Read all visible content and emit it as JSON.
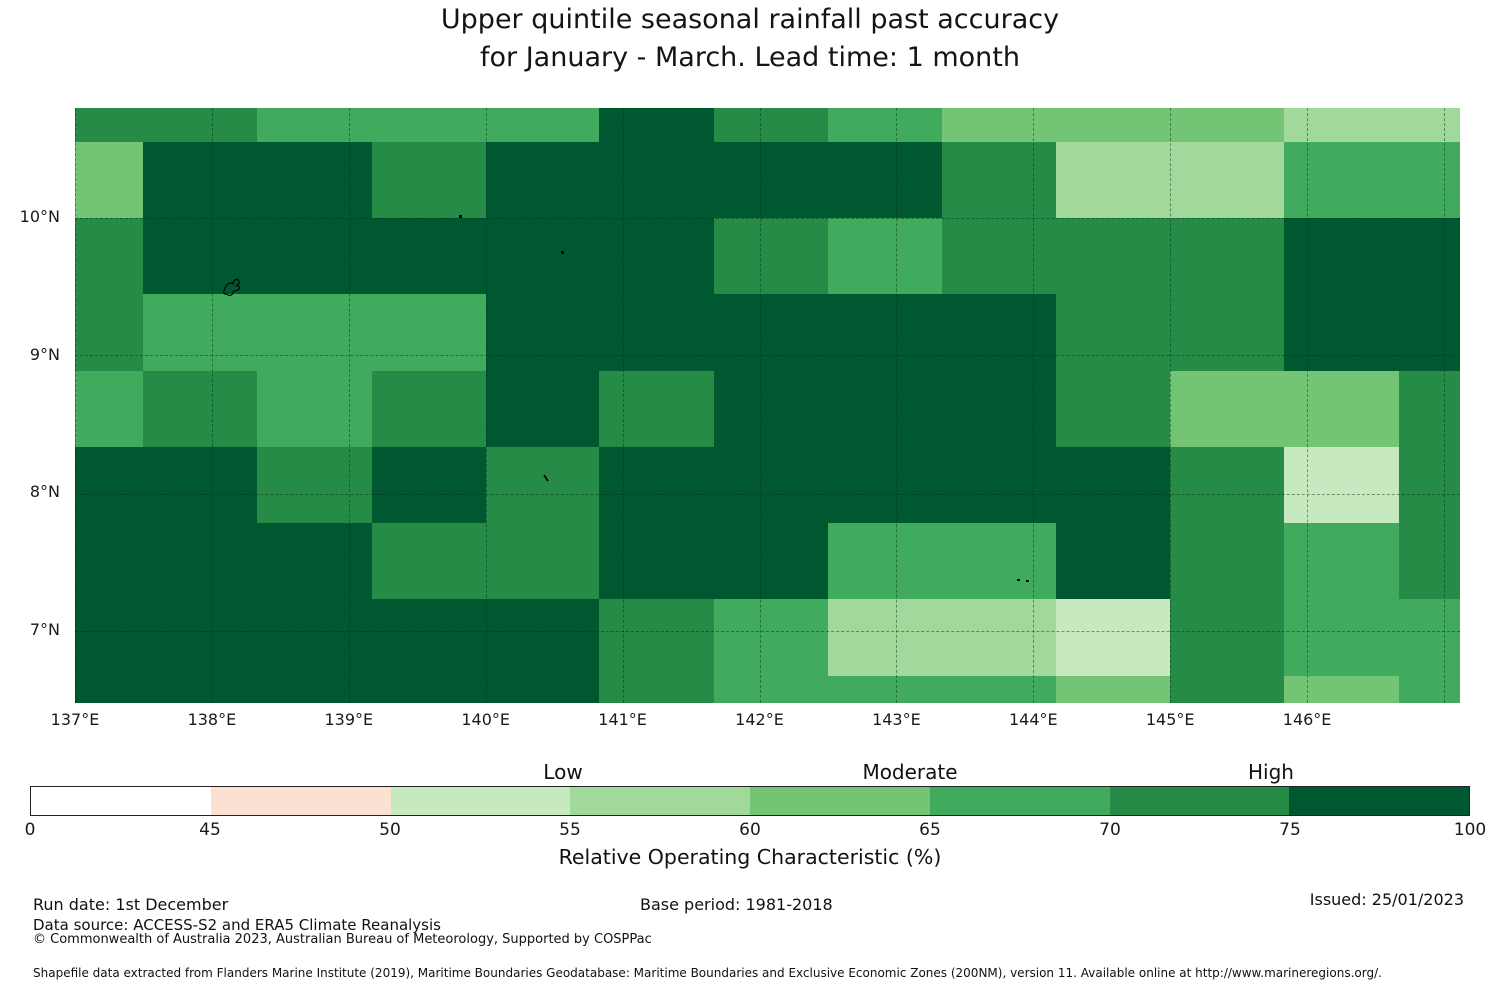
{
  "title": {
    "line1": "Upper quintile seasonal rainfall past accuracy",
    "line2": "for January - March. Lead time: 1 month"
  },
  "chart_data": {
    "type": "heatmap",
    "x_tick_labels": [
      "137°E",
      "138°E",
      "139°E",
      "140°E",
      "141°E",
      "142°E",
      "143°E",
      "144°E",
      "145°E",
      "146°E"
    ],
    "y_tick_labels": [
      "10°N",
      "9°N",
      "8°N",
      "7°N"
    ],
    "palette": {
      "p0": "#ffffff",
      "p1": "#fbe1d2",
      "p2": "#c7e9c0",
      "p3": "#a1d99b",
      "p4": "#74c476",
      "p5": "#41ab5d",
      "p6": "#268b47",
      "p7": "#005830"
    },
    "grid_rows": [
      [
        6,
        6,
        5,
        5,
        5,
        7,
        6,
        5,
        4,
        4,
        4,
        3,
        3
      ],
      [
        4,
        7,
        7,
        6,
        7,
        7,
        7,
        7,
        6,
        3,
        3,
        5,
        5
      ],
      [
        6,
        7,
        7,
        7,
        7,
        7,
        6,
        5,
        6,
        6,
        6,
        7,
        7
      ],
      [
        6,
        5,
        5,
        5,
        7,
        7,
        7,
        7,
        7,
        6,
        6,
        7,
        7
      ],
      [
        5,
        6,
        5,
        6,
        7,
        6,
        7,
        7,
        7,
        6,
        4,
        4,
        6
      ],
      [
        7,
        7,
        6,
        7,
        6,
        7,
        7,
        7,
        7,
        7,
        6,
        2,
        6
      ],
      [
        7,
        7,
        7,
        6,
        6,
        7,
        7,
        5,
        5,
        7,
        6,
        5,
        6
      ],
      [
        7,
        7,
        7,
        7,
        7,
        6,
        5,
        3,
        3,
        2,
        6,
        5,
        5
      ],
      [
        7,
        7,
        7,
        7,
        7,
        6,
        5,
        5,
        5,
        4,
        6,
        4,
        5
      ]
    ],
    "colorbar": {
      "tick_values": [
        "0",
        "45",
        "50",
        "55",
        "60",
        "65",
        "70",
        "75",
        "100"
      ],
      "segment_palette_keys": [
        "p0",
        "p1",
        "p2",
        "p3",
        "p4",
        "p5",
        "p6",
        "p7"
      ],
      "category_labels": {
        "low": "Low",
        "moderate": "Moderate",
        "high": "High"
      },
      "axis_label": "Relative Operating Characteristic (%)"
    }
  },
  "meta": {
    "run_date": "Run date: 1st December",
    "base_period": "Base period: 1981-2018",
    "issued": "Issued: 25/01/2023",
    "data_source": "Data source: ACCESS-S2 and ERA5 Climate Reanalysis",
    "copyright": "© Commonwealth of Australia 2023, Australian Bureau of Meteorology, Supported by COSPPac",
    "shapefile_note": "Shapefile data extracted from Flanders Marine Institute (2019), Maritime Boundaries Geodatabase: Maritime Boundaries and Exclusive Economic Zones (200NM), version 11. Available online at http://www.marineregions.org/."
  }
}
